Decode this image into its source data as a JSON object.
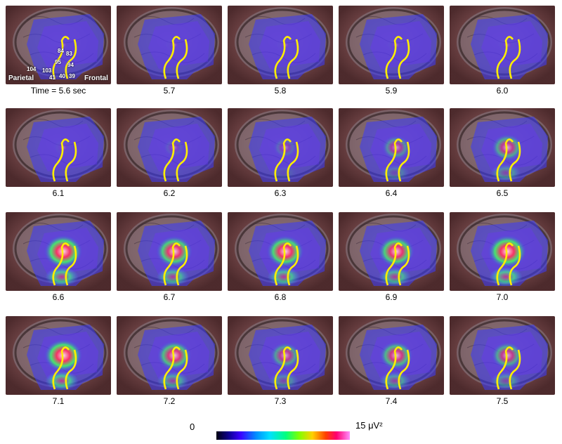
{
  "labels": {
    "parietal": "Parietal",
    "frontal": "Frontal",
    "first_time_prefix": "Time = 5.6 sec"
  },
  "electrodes": [
    "104",
    "103",
    "95",
    "84",
    "83",
    "94",
    "41",
    "40",
    "39"
  ],
  "frames": [
    {
      "label": "Time = 5.6 sec",
      "activity": 0.0
    },
    {
      "label": "5.7",
      "activity": 0.02
    },
    {
      "label": "5.8",
      "activity": 0.02
    },
    {
      "label": "5.9",
      "activity": 0.03
    },
    {
      "label": "6.0",
      "activity": 0.03
    },
    {
      "label": "6.1",
      "activity": 0.04
    },
    {
      "label": "6.2",
      "activity": 0.12
    },
    {
      "label": "6.3",
      "activity": 0.22
    },
    {
      "label": "6.4",
      "activity": 0.45
    },
    {
      "label": "6.5",
      "activity": 0.6
    },
    {
      "label": "6.6",
      "activity": 0.95
    },
    {
      "label": "6.7",
      "activity": 0.85
    },
    {
      "label": "6.8",
      "activity": 0.9
    },
    {
      "label": "6.9",
      "activity": 0.85
    },
    {
      "label": "7.0",
      "activity": 0.95
    },
    {
      "label": "7.1",
      "activity": 0.95
    },
    {
      "label": "7.2",
      "activity": 0.75
    },
    {
      "label": "7.3",
      "activity": 0.55
    },
    {
      "label": "7.4",
      "activity": 0.7
    },
    {
      "label": "7.5",
      "activity": 0.6
    }
  ],
  "colorbar": {
    "min_label": "0",
    "max_label": "15 μV²"
  }
}
